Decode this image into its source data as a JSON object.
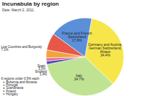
{
  "chart_data": {
    "type": "pie",
    "title": "Incunabula by region",
    "subtitle": "Date: March 2, 2011",
    "categories": [
      "Germany and Austria, German Switzerland, Alsace",
      "Italy",
      "6 regions under 0.5% each:",
      "England",
      "Spain",
      "Low Countries and Burgundy",
      "France and French Switzerland"
    ],
    "values": [
      34.4,
      34.7,
      1.3,
      1.4,
      3.3,
      7.1,
      17.8
    ],
    "value_labels": [
      "34.4%",
      "34.7%",
      null,
      "1.4%",
      "3.3%",
      "7.1%",
      "17.8%"
    ],
    "colors": [
      "#f7e64a",
      "#bfe393",
      "#4b4ba8",
      "#e86a9e",
      "#f2a33a",
      "#e8584a",
      "#5b8fd9"
    ],
    "annotations": [
      "Bohemia and Moravia",
      "Portugal",
      "Scandinavia",
      "Poland",
      "Hungary"
    ],
    "data_labels": true,
    "tick_labels": false
  }
}
